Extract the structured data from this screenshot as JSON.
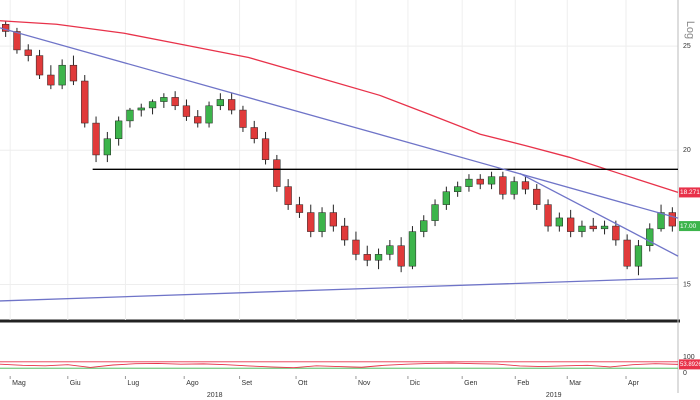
{
  "chart_data": {
    "type": "candlestick",
    "y_label": "Log",
    "log_scale": true,
    "grid": true,
    "xlim": [
      0,
      60
    ],
    "xticks": [
      {
        "value": 0.9,
        "label": "Mag"
      },
      {
        "value": 6,
        "label": "Giu"
      },
      {
        "value": 11.1,
        "label": "Lug"
      },
      {
        "value": 16.3,
        "label": "Ago"
      },
      {
        "value": 21.2,
        "label": "Set"
      },
      {
        "value": 26.2,
        "label": "Ott"
      },
      {
        "value": 31.5,
        "label": "Nov"
      },
      {
        "value": 36.1,
        "label": "Dic"
      },
      {
        "value": 40.9,
        "label": "Gen"
      },
      {
        "value": 45.6,
        "label": "Feb"
      },
      {
        "value": 50.2,
        "label": "Mar"
      },
      {
        "value": 55.4,
        "label": "Apr"
      }
    ],
    "year_ticks": [
      {
        "value": 19,
        "label": "2018"
      },
      {
        "value": 49,
        "label": "2019"
      }
    ],
    "ylim": [
      13.9,
      27.6
    ],
    "yticks": [
      15,
      20,
      25
    ],
    "up_color": "#3cb44b",
    "down_color": "#e03a3a",
    "open": [
      26.2,
      25.8,
      24.8,
      24.5,
      23.5,
      23.0,
      24.0,
      23.2,
      21.2,
      19.8,
      20.5,
      21.3,
      21.8,
      21.9,
      22.2,
      22.4,
      22.0,
      21.5,
      21.2,
      22.0,
      22.3,
      21.8,
      21.0,
      20.5,
      19.6,
      18.5,
      17.8,
      17.5,
      16.8,
      17.5,
      17.0,
      16.5,
      16.0,
      15.8,
      16.0,
      16.3,
      15.6,
      16.8,
      17.2,
      17.8,
      18.3,
      18.5,
      18.8,
      18.6,
      18.9,
      18.2,
      18.7,
      18.4,
      17.8,
      17.0,
      17.3,
      16.8,
      17.0,
      16.9,
      17.0,
      16.5,
      15.6,
      16.3,
      16.9,
      17.5
    ],
    "high": [
      26.4,
      26.0,
      25.1,
      24.8,
      24.0,
      24.3,
      24.5,
      23.5,
      21.5,
      20.8,
      21.5,
      21.9,
      22.1,
      22.3,
      22.6,
      22.7,
      22.3,
      21.8,
      22.2,
      22.6,
      22.6,
      22.0,
      21.3,
      20.8,
      19.8,
      18.8,
      18.1,
      17.8,
      17.7,
      17.8,
      17.3,
      16.8,
      16.3,
      16.2,
      16.5,
      16.6,
      17.0,
      17.4,
      18.0,
      18.5,
      18.7,
      19.0,
      19.0,
      19.1,
      19.1,
      18.9,
      18.9,
      18.6,
      18.0,
      17.5,
      17.6,
      17.2,
      17.3,
      17.2,
      17.2,
      16.7,
      16.5,
      17.1,
      17.8,
      17.7
    ],
    "low": [
      25.5,
      24.6,
      24.2,
      23.3,
      22.8,
      22.8,
      23.0,
      21.0,
      19.5,
      19.5,
      20.2,
      21.0,
      21.5,
      21.6,
      21.9,
      21.8,
      21.3,
      21.0,
      21.0,
      21.8,
      21.6,
      20.8,
      20.3,
      19.4,
      18.3,
      17.6,
      17.3,
      16.6,
      16.6,
      16.8,
      16.3,
      15.8,
      15.6,
      15.5,
      15.8,
      15.4,
      15.5,
      16.6,
      17.0,
      17.6,
      18.1,
      18.3,
      18.4,
      18.4,
      18.0,
      18.0,
      18.2,
      17.6,
      16.8,
      16.8,
      16.6,
      16.6,
      16.8,
      16.7,
      16.3,
      15.5,
      15.3,
      16.1,
      16.8,
      16.8
    ],
    "close": [
      25.8,
      24.8,
      24.5,
      23.5,
      23.0,
      24.0,
      23.2,
      21.2,
      19.8,
      20.5,
      21.3,
      21.8,
      21.9,
      22.2,
      22.4,
      22.0,
      21.5,
      21.2,
      22.0,
      22.3,
      21.8,
      21.0,
      20.5,
      19.6,
      18.5,
      17.8,
      17.5,
      16.8,
      17.5,
      17.0,
      16.5,
      16.0,
      15.8,
      16.0,
      16.3,
      15.6,
      16.8,
      17.2,
      17.8,
      18.3,
      18.5,
      18.8,
      18.6,
      18.9,
      18.2,
      18.7,
      18.4,
      17.8,
      17.0,
      17.3,
      16.8,
      17.0,
      16.9,
      17.0,
      16.5,
      15.6,
      16.3,
      16.9,
      17.5,
      17.0
    ],
    "price_tag": {
      "value": 17.0,
      "label": "17.00",
      "color": "#3cb44b"
    },
    "moving_average": {
      "color": "#e8324a",
      "x": [
        0,
        5,
        11,
        16,
        22,
        28,
        33.6,
        38,
        42.5,
        46.5,
        50.4,
        55,
        60
      ],
      "values": [
        26.4,
        26.2,
        25.7,
        25.1,
        24.4,
        23.4,
        22.5,
        21.6,
        20.7,
        20.2,
        19.7,
        19.0,
        18.2714
      ]
    },
    "horizontal_line": {
      "color": "#000000",
      "x": [
        8.2,
        60
      ],
      "values": [
        19.2,
        19.2
      ]
    },
    "trendlines": [
      {
        "color": "#6f74c8",
        "x": [
          0,
          60
        ],
        "values": [
          26.0,
          17.29
        ]
      },
      {
        "color": "#6f74c8",
        "x": [
          46,
          60
        ],
        "values": [
          19.03,
          15.94
        ]
      },
      {
        "color": "#6f74c8",
        "x": [
          0,
          60
        ],
        "values": [
          14.48,
          15.21
        ]
      }
    ],
    "rsi": {
      "ylim": [
        0,
        100
      ],
      "yticks": [
        100,
        0
      ],
      "upper": 70,
      "lower": 30,
      "color": "#e8324a",
      "band_upper_color": "#e8324a",
      "band_lower_color": "#3cb44b",
      "x": [
        0,
        2,
        4,
        6,
        8,
        10,
        12,
        14,
        16,
        18,
        20,
        22,
        24,
        26,
        28,
        30,
        32,
        34,
        36,
        38,
        40,
        42,
        44,
        46,
        48,
        50,
        52,
        54,
        56,
        58,
        60
      ],
      "values": [
        55,
        48,
        45,
        52,
        35,
        50,
        58,
        60,
        55,
        57,
        52,
        44,
        38,
        33,
        45,
        40,
        36,
        48,
        55,
        60,
        62,
        58,
        56,
        44,
        40,
        45,
        48,
        38,
        52,
        58,
        53.8926
      ]
    }
  }
}
